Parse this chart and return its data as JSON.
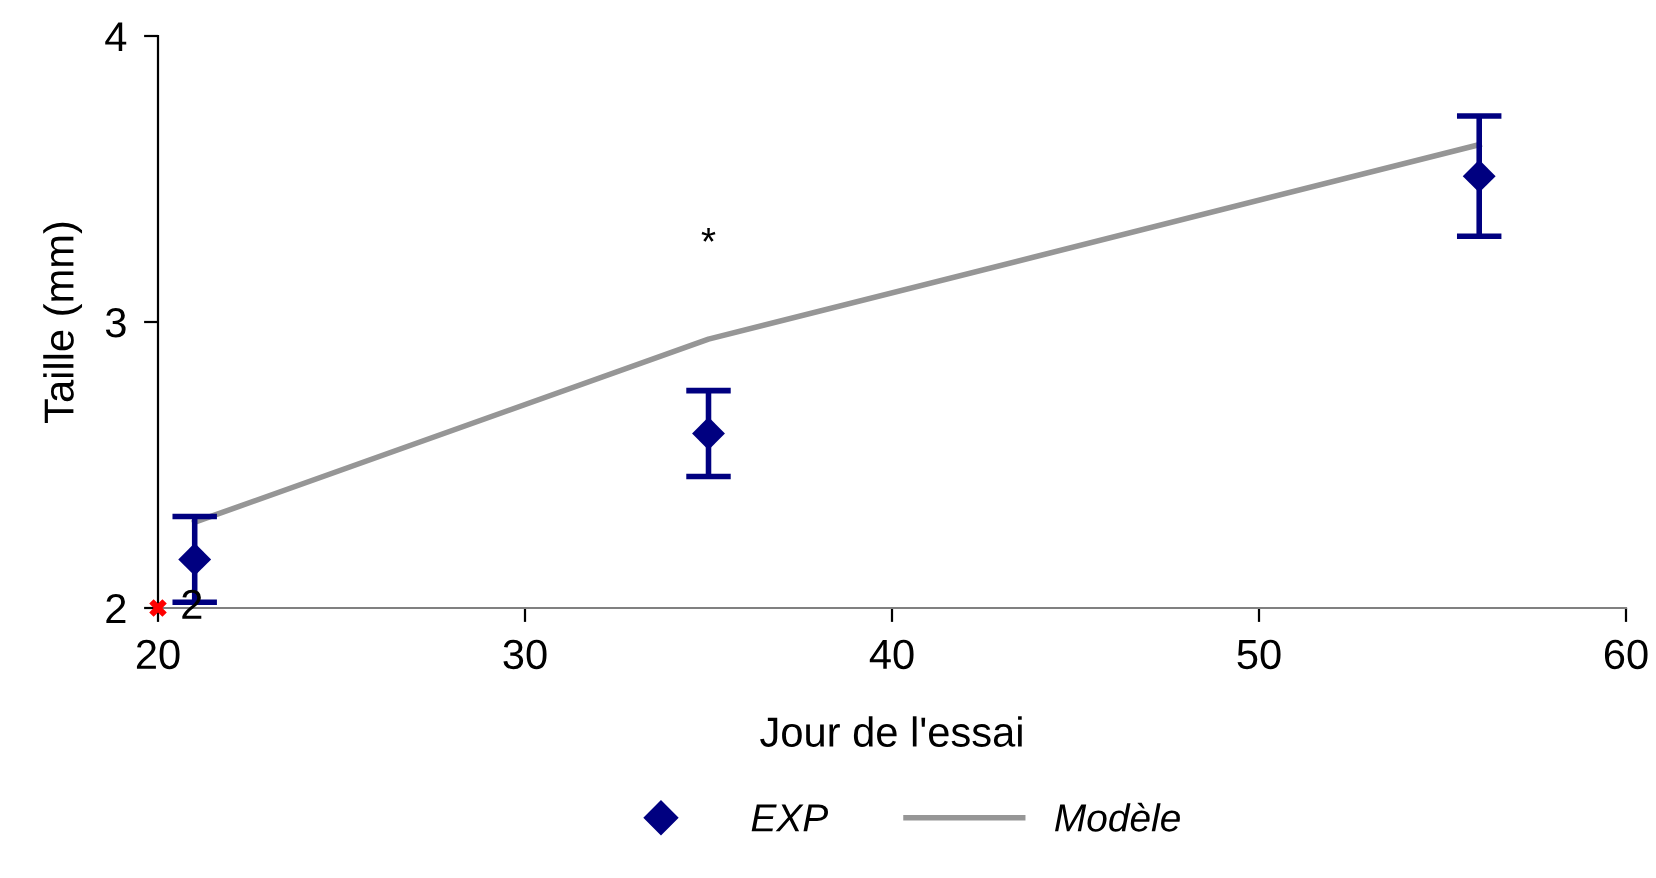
{
  "chart_data": {
    "type": "scatter",
    "xlabel": "Jour de l'essai",
    "ylabel": "Taille (mm)",
    "xlim": [
      20,
      60
    ],
    "xticks": [
      20,
      30,
      40,
      50,
      60
    ],
    "ylim": [
      2,
      4
    ],
    "yticks": [
      2,
      3,
      4
    ],
    "grid": false,
    "legend": "bottom",
    "annotations": [
      "*"
    ],
    "series": [
      {
        "name": "EXP",
        "type": "scatter",
        "color": "#000080",
        "marker": "diamond",
        "x": [
          21,
          35,
          56
        ],
        "values": [
          2.17,
          2.61,
          3.51
        ],
        "errors": [
          0.15,
          0.15,
          0.21
        ]
      },
      {
        "name": "Modèle",
        "type": "line",
        "color": "#969696",
        "marker": "none",
        "x": [
          21,
          35,
          56
        ],
        "values": [
          2.3,
          2.94,
          3.62
        ]
      },
      {
        "color": "#ff0000",
        "marker": "cross",
        "x": [
          20
        ],
        "values": [
          2
        ],
        "data_labels": true
      }
    ]
  }
}
